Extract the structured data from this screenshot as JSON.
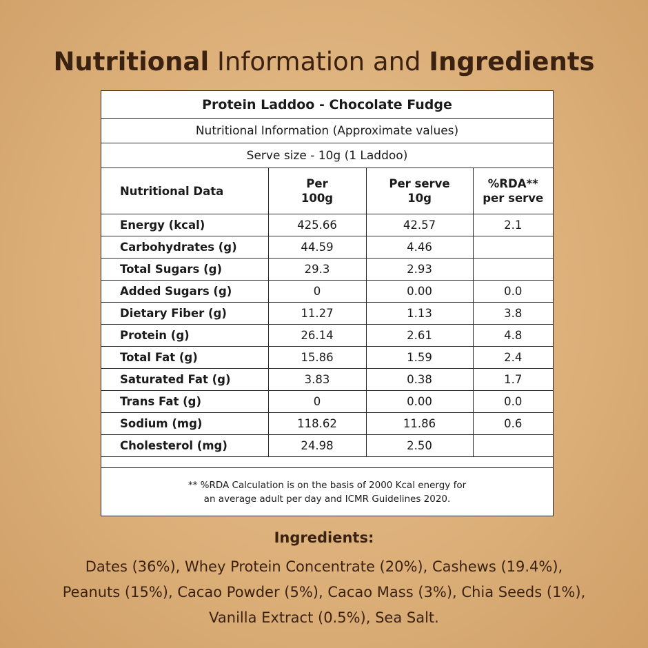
{
  "heading": {
    "bold1": "Nutritional",
    "light": "Information and",
    "bold2": "Ingredients"
  },
  "panel": {
    "product": "Protein Laddoo - Chocolate Fudge",
    "subtitle": "Nutritional Information (Approximate values)",
    "serve": "Serve size - 10g (1 Laddoo)",
    "columns": {
      "c1": "Nutritional Data",
      "c2a": "Per",
      "c2b": "100g",
      "c3a": "Per serve",
      "c3b": "10g",
      "c4a": "%RDA**",
      "c4b": "per serve"
    },
    "rows": [
      {
        "name": "Energy (kcal)",
        "per100": "425.66",
        "serve": "42.57",
        "rda": "2.1"
      },
      {
        "name": "Carbohydrates (g)",
        "per100": "44.59",
        "serve": "4.46",
        "rda": ""
      },
      {
        "name": "Total Sugars (g)",
        "per100": "29.3",
        "serve": "2.93",
        "rda": ""
      },
      {
        "name": "Added Sugars (g)",
        "per100": "0",
        "serve": "0.00",
        "rda": "0.0"
      },
      {
        "name": "Dietary Fiber (g)",
        "per100": "11.27",
        "serve": "1.13",
        "rda": "3.8"
      },
      {
        "name": "Protein (g)",
        "per100": "26.14",
        "serve": "2.61",
        "rda": "4.8"
      },
      {
        "name": "Total Fat (g)",
        "per100": "15.86",
        "serve": "1.59",
        "rda": "2.4"
      },
      {
        "name": "Saturated Fat (g)",
        "per100": "3.83",
        "serve": "0.38",
        "rda": "1.7"
      },
      {
        "name": "Trans Fat (g)",
        "per100": "0",
        "serve": "0.00",
        "rda": "0.0"
      },
      {
        "name": "Sodium (mg)",
        "per100": "118.62",
        "serve": "11.86",
        "rda": "0.6"
      },
      {
        "name": "Cholesterol (mg)",
        "per100": "24.98",
        "serve": "2.50",
        "rda": ""
      }
    ],
    "footnote1": "** %RDA Calculation is on the basis of 2000 Kcal energy for",
    "footnote2": "an average adult per day and ICMR Guidelines 2020."
  },
  "ingredients": {
    "title": "Ingredients:",
    "line1": "Dates (36%), Whey Protein Concentrate (20%), Cashews (19.4%),",
    "line2": "Peanuts (15%), Cacao Powder (5%), Cacao Mass (3%),  Chia Seeds (1%),",
    "line3": "Vanilla Extract (0.5%), Sea Salt."
  }
}
